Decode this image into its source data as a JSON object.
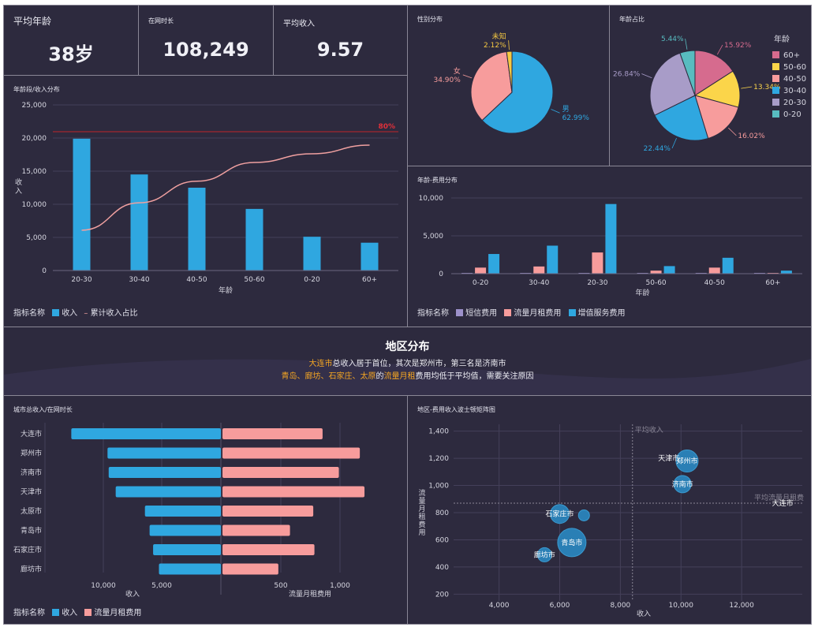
{
  "colors": {
    "blue": "#2fa7e0",
    "pink": "#f79c9c",
    "purple": "#9d91cb",
    "line_pink": "#f0a0a0",
    "red": "#c0242b",
    "grid": "#44405a",
    "text": "#d6d6e0"
  },
  "kpis": [
    {
      "title": "平均年龄",
      "value": "38岁"
    },
    {
      "title": "在网时长",
      "value": "108,249"
    },
    {
      "title": "平均收入",
      "value": "9.57"
    }
  ],
  "gender": {
    "title": "性别分布",
    "slices": [
      {
        "name": "男",
        "pct": "62.99%",
        "value": 62.99,
        "color": "#2fa7e0"
      },
      {
        "name": "女",
        "pct": "34.90%",
        "value": 34.9,
        "color": "#f79c9c"
      },
      {
        "name": "未知",
        "pct": "2.12%",
        "value": 2.12,
        "color": "#f5c842"
      }
    ]
  },
  "age_share": {
    "title": "年龄占比",
    "legend_title": "年龄",
    "slices": [
      {
        "name": "60+",
        "pct": "15.92%",
        "value": 15.92,
        "color": "#d66b8e"
      },
      {
        "name": "50-60",
        "pct": "13.34%",
        "value": 13.34,
        "color": "#fbd54a"
      },
      {
        "name": "40-50",
        "pct": "16.02%",
        "value": 16.02,
        "color": "#f79c9c"
      },
      {
        "name": "30-40",
        "pct": "22.44%",
        "value": 22.44,
        "color": "#2fa7e0"
      },
      {
        "name": "20-30",
        "pct": "26.84%",
        "value": 26.84,
        "color": "#a89cc8"
      },
      {
        "name": "0-20",
        "pct": "5.44%",
        "value": 5.44,
        "color": "#58bcc0"
      }
    ]
  },
  "chart_data": [
    {
      "type": "bar",
      "title": "年龄段/收入分布",
      "categories": [
        "20-30",
        "30-40",
        "40-50",
        "50-60",
        "0-20",
        "60+"
      ],
      "series": [
        {
          "name": "收入",
          "type": "bar",
          "values": [
            19900,
            14500,
            12500,
            9300,
            5100,
            4200
          ]
        },
        {
          "name": "累计收入占比",
          "type": "line",
          "values": [
            0.28,
            0.47,
            0.62,
            0.75,
            0.81,
            0.87
          ]
        }
      ],
      "reference_line": {
        "label": "80%",
        "value": 0.8
      },
      "xlabel": "年龄",
      "ylabel": "收入",
      "ylim": [
        0,
        25000
      ],
      "yticks": [
        "25,000",
        "20,000",
        "15,000",
        "10,000",
        "5,000",
        "0"
      ],
      "legend_label": "指标名称"
    },
    {
      "type": "bar",
      "title": "年龄-费用分布",
      "categories": [
        "0-20",
        "30-40",
        "20-30",
        "50-60",
        "40-50",
        "60+"
      ],
      "series": [
        {
          "name": "短信费用",
          "values": [
            40,
            40,
            50,
            30,
            40,
            20
          ]
        },
        {
          "name": "流量月租费用",
          "values": [
            800,
            950,
            2800,
            400,
            800,
            100
          ]
        },
        {
          "name": "增值服务费用",
          "values": [
            2600,
            3700,
            9200,
            1000,
            2100,
            400
          ]
        }
      ],
      "xlabel": "年龄",
      "ylabel": "",
      "ylim": [
        0,
        10000
      ],
      "yticks": [
        "10,000",
        "5,000",
        "0"
      ],
      "legend_label": "指标名称"
    },
    {
      "type": "bar",
      "title": "城市总收入/在网时长",
      "categories": [
        "大连市",
        "郑州市",
        "济南市",
        "天津市",
        "太原市",
        "青岛市",
        "石家庄市",
        "廊坊市"
      ],
      "series": [
        {
          "name": "收入",
          "values": [
            12800,
            9700,
            9600,
            9000,
            6500,
            6100,
            5800,
            5300
          ]
        },
        {
          "name": "流量月租费用",
          "values": [
            860,
            1180,
            1000,
            1220,
            780,
            580,
            790,
            480
          ]
        }
      ],
      "left_ticks": [
        "10,000",
        "5,000"
      ],
      "right_ticks": [
        "500",
        "1,000"
      ],
      "xlabel_left": "收入",
      "xlabel_right": "流量月租费用",
      "legend_label": "指标名称"
    },
    {
      "type": "scatter",
      "title": "地区-费用收入波士顿矩阵图",
      "xlabel": "收入",
      "ylabel": "流量月租费用",
      "xlim": [
        2500,
        14000
      ],
      "ylim": [
        150,
        1450
      ],
      "xticks": [
        "4,000",
        "6,000",
        "8,000",
        "10,000",
        "12,000"
      ],
      "yticks": [
        "1,400",
        "1,200",
        "1,000",
        "800",
        "600",
        "400",
        "200"
      ],
      "avg_x": {
        "label": "平均收入",
        "value": 8400
      },
      "avg_y": {
        "label": "平均流量月租费",
        "value": 870
      },
      "points": [
        {
          "name": "郑州市",
          "x": 10200,
          "y": 1180,
          "size": 14
        },
        {
          "name": "天津市",
          "x": 10000,
          "y": 1200,
          "size": 0
        },
        {
          "name": "济南市",
          "x": 10050,
          "y": 1010,
          "size": 11
        },
        {
          "name": "大连市",
          "x": 13600,
          "y": 870,
          "size": 0
        },
        {
          "name": "石家庄市",
          "x": 6000,
          "y": 790,
          "size": 12
        },
        {
          "name": "",
          "x": 6800,
          "y": 780,
          "size": 7
        },
        {
          "name": "青岛市",
          "x": 6400,
          "y": 580,
          "size": 18
        },
        {
          "name": "廊坊市",
          "x": 5500,
          "y": 490,
          "size": 9
        }
      ]
    }
  ],
  "region": {
    "title": "地区分布",
    "line1": {
      "hl": "大连市",
      "rest": "总收入居于首位，其次是郑州市，第三名是济南市"
    },
    "line2": {
      "hl1": "青岛、廊坊、石家庄、太原",
      "mid": "的",
      "hl2": "流量月租",
      "rest": "费用均低于平均值，需要关注原因"
    }
  }
}
